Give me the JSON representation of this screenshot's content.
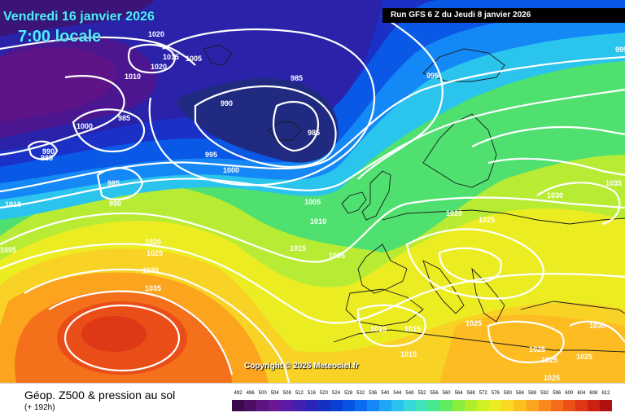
{
  "header": {
    "date_title": "Vendredi 16 janvier 2026",
    "time_title": "7:00 locale",
    "run_info": "Run GFS 6 Z du Jeudi 8 janvier 2026"
  },
  "copyright": "Copyright © 2026 Meteociel.fr",
  "footer": {
    "product": "Géop. Z500 & pression au sol",
    "lead": "(+ 192h)"
  },
  "scale": {
    "ticks": [
      "492",
      "496",
      "500",
      "504",
      "508",
      "512",
      "516",
      "520",
      "524",
      "528",
      "532",
      "536",
      "540",
      "544",
      "548",
      "552",
      "556",
      "560",
      "564",
      "568",
      "572",
      "576",
      "580",
      "584",
      "588",
      "592",
      "596",
      "600",
      "604",
      "608",
      "612"
    ],
    "colors": [
      "#3a0a4a",
      "#4e0e66",
      "#5e1480",
      "#6a1896",
      "#5a1ca6",
      "#4220b0",
      "#2a24b8",
      "#1630c4",
      "#0a40d4",
      "#0654e4",
      "#0a6cf0",
      "#1488f6",
      "#20a6f6",
      "#2cc2ee",
      "#36d8dc",
      "#3ee4b8",
      "#48e88c",
      "#62ea5e",
      "#8aec3e",
      "#b0ee2c",
      "#d2ee24",
      "#ecec22",
      "#f8da22",
      "#fcc020",
      "#fca41e",
      "#fa881c",
      "#f46c1a",
      "#ea5018",
      "#de3816",
      "#cc2012",
      "#b0100e"
    ]
  },
  "isobar_labels": [
    "1020",
    "1015",
    "1005",
    "1020",
    "1010",
    "985",
    "990",
    "1000",
    "985",
    "990",
    "985",
    "985",
    "995",
    "1000",
    "985",
    "990",
    "995",
    "1005",
    "1010",
    "1010",
    "1015",
    "1005",
    "1020",
    "1025",
    "1030",
    "1035",
    "1035",
    "1030",
    "1020",
    "1025",
    "1015",
    "1015",
    "1025",
    "1015",
    "1025",
    "1025",
    "1025",
    "1030",
    "1025",
    "1005",
    "995"
  ],
  "colors": {
    "title_text": "#58e8ff",
    "banner_bg": "#000000",
    "isobar": "#ffffff",
    "coastline": "#1a1a1a"
  }
}
